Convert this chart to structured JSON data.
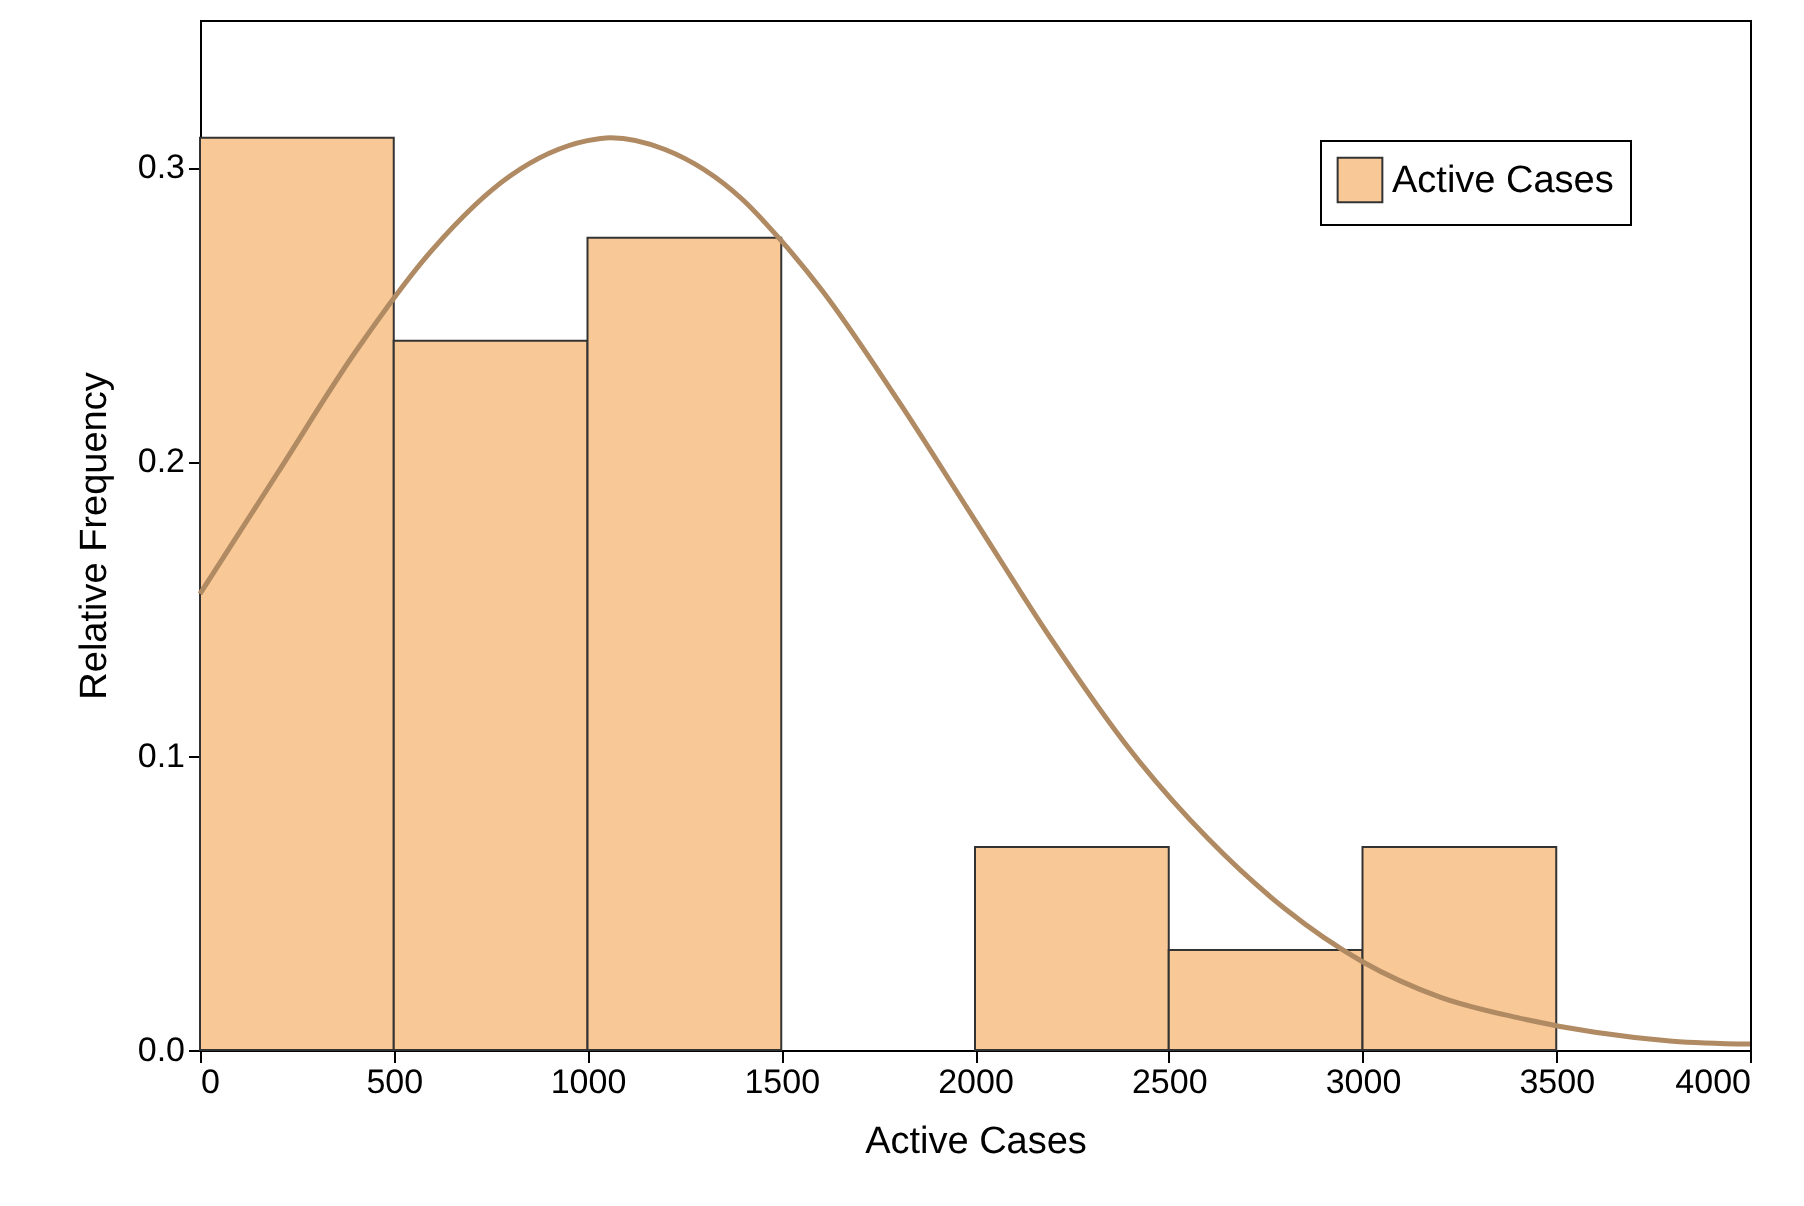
{
  "chart_data": {
    "type": "histogram",
    "xlabel": "Active Cases",
    "ylabel": "Relative Frequency",
    "bins": [
      0,
      500,
      1000,
      1500,
      2000,
      2500,
      3000,
      3500
    ],
    "series": [
      {
        "name": "Active Cases",
        "color": "#f9c897",
        "values": [
          0.31,
          0.241,
          0.276,
          0,
          0.069,
          0.034,
          0.069
        ]
      },
      {
        "type": "line",
        "color": "#b08a62",
        "x": [
          0,
          200,
          400,
          600,
          800,
          1000,
          1060,
          1200,
          1400,
          1500,
          1600,
          1800,
          2000,
          2200,
          2400,
          2600,
          2800,
          3000,
          3200,
          3400,
          3600,
          3800,
          4000
        ],
        "values": [
          0.155,
          0.196,
          0.237,
          0.272,
          0.297,
          0.309,
          0.31,
          0.306,
          0.289,
          0.275,
          0.259,
          0.221,
          0.18,
          0.139,
          0.102,
          0.072,
          0.048,
          0.03,
          0.018,
          0.011,
          0.006,
          0.003,
          0.002
        ]
      }
    ],
    "xlim": [
      0,
      4000
    ],
    "ylim": [
      0,
      0.35
    ],
    "xticks": [
      0,
      500,
      1000,
      1500,
      2000,
      2500,
      3000,
      3500,
      4000
    ],
    "yticks": [
      {
        "value": 0,
        "label": "0.0"
      },
      0.1,
      0.2,
      0.3
    ],
    "grid": false,
    "legend": "top right"
  }
}
